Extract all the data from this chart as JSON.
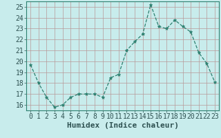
{
  "x": [
    0,
    1,
    2,
    3,
    4,
    5,
    6,
    7,
    8,
    9,
    10,
    11,
    12,
    13,
    14,
    15,
    16,
    17,
    18,
    19,
    20,
    21,
    22,
    23
  ],
  "y": [
    19.7,
    18.0,
    16.7,
    15.8,
    16.0,
    16.7,
    17.0,
    17.0,
    17.0,
    16.7,
    18.5,
    18.8,
    21.0,
    21.8,
    22.5,
    25.2,
    23.2,
    23.0,
    23.8,
    23.2,
    22.7,
    20.8,
    19.8,
    18.1
  ],
  "line_color": "#2d8070",
  "marker": "*",
  "marker_size": 3.5,
  "bg_color": "#c8ecec",
  "grid_color": "#b89898",
  "xlabel": "Humidex (Indice chaleur)",
  "ylim": [
    15.5,
    25.5
  ],
  "xlim": [
    -0.5,
    23.5
  ],
  "yticks": [
    16,
    17,
    18,
    19,
    20,
    21,
    22,
    23,
    24,
    25
  ],
  "xticks": [
    0,
    1,
    2,
    3,
    4,
    5,
    6,
    7,
    8,
    9,
    10,
    11,
    12,
    13,
    14,
    15,
    16,
    17,
    18,
    19,
    20,
    21,
    22,
    23
  ],
  "xtick_labels": [
    "0",
    "1",
    "2",
    "3",
    "4",
    "5",
    "6",
    "7",
    "8",
    "9",
    "10",
    "11",
    "12",
    "13",
    "14",
    "15",
    "16",
    "17",
    "18",
    "19",
    "20",
    "21",
    "22",
    "23"
  ],
  "spine_color": "#2d8070",
  "xlabel_fontsize": 8,
  "tick_fontsize": 7,
  "label_color": "#2d5050"
}
